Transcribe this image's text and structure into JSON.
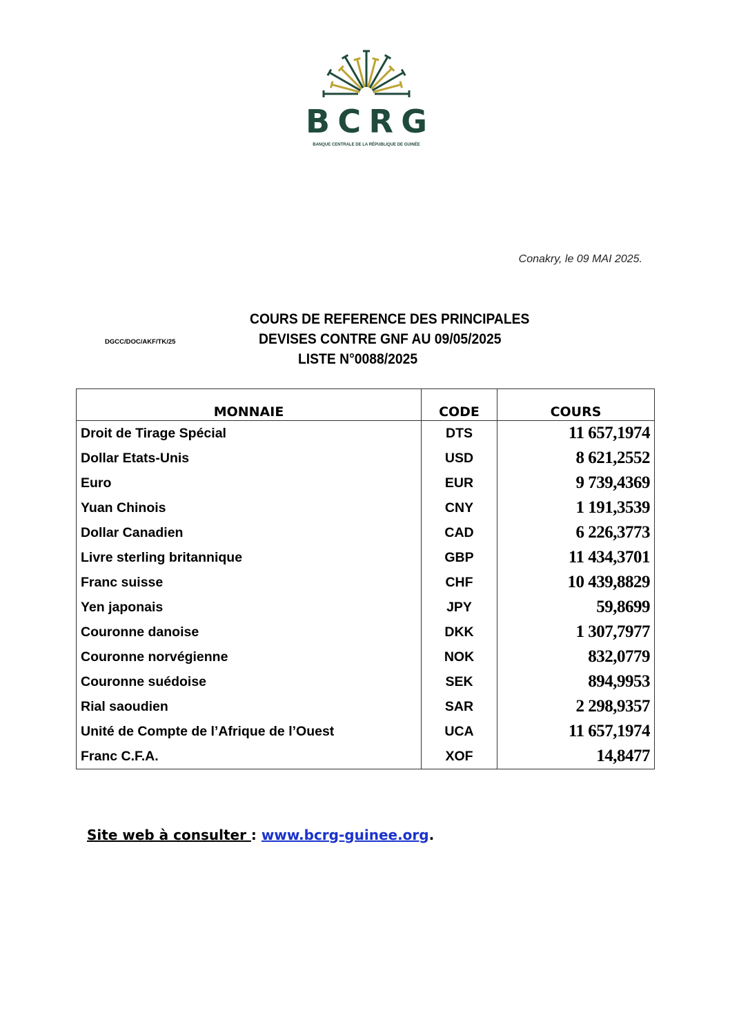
{
  "logo": {
    "text": "BCRG",
    "subtitle": "BANQUE CENTRALE DE LA RÉPUBLIQUE DE GUINÉE",
    "colors": {
      "green": "#1f4a3c",
      "gold": "#bba433"
    }
  },
  "header": {
    "date": "Conakry, le 09 MAI 2025.",
    "reference": "DGCC/DOC/AKF/TK/25",
    "title_line1": "COURS DE REFERENCE DES PRINCIPALES",
    "title_line2": "DEVISES CONTRE GNF AU 09/05/2025",
    "title_line3": "LISTE N°0088/2025"
  },
  "table": {
    "headers": {
      "currency": "MONNAIE",
      "code": "CODE",
      "rate": "COURS"
    },
    "rows": [
      {
        "currency": "Droit de Tirage Spécial",
        "code": "DTS",
        "rate": "11 657,1974"
      },
      {
        "currency": "Dollar Etats-Unis",
        "code": "USD",
        "rate": "8 621,2552"
      },
      {
        "currency": "Euro",
        "code": "EUR",
        "rate": "9 739,4369"
      },
      {
        "currency": "Yuan Chinois",
        "code": "CNY",
        "rate": "1 191,3539"
      },
      {
        "currency": "Dollar Canadien",
        "code": "CAD",
        "rate": "6 226,3773"
      },
      {
        "currency": "Livre sterling britannique",
        "code": "GBP",
        "rate": "11 434,3701"
      },
      {
        "currency": "Franc suisse",
        "code": "CHF",
        "rate": "10 439,8829"
      },
      {
        "currency": "Yen japonais",
        "code": "JPY",
        "rate": "59,8699"
      },
      {
        "currency": "Couronne danoise",
        "code": "DKK",
        "rate": "1 307,7977"
      },
      {
        "currency": "Couronne norvégienne",
        "code": "NOK",
        "rate": "832,0779"
      },
      {
        "currency": "Couronne suédoise",
        "code": "SEK",
        "rate": "894,9953"
      },
      {
        "currency": "Rial saoudien",
        "code": "SAR",
        "rate": "2 298,9357"
      },
      {
        "currency": "Unité de Compte de l’Afrique de l’Ouest",
        "code": "UCA",
        "rate": "11 657,1974"
      },
      {
        "currency": "Franc C.F.A.",
        "code": "XOF",
        "rate": "14,8477"
      }
    ]
  },
  "footer": {
    "label": "Site web à consulter ",
    "separator": ": ",
    "link": "www.bcrg-guinee.org",
    "end": "."
  }
}
